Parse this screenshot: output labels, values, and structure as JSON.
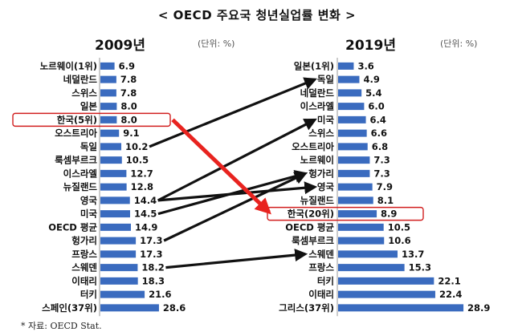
{
  "title": "< OECD 주요국 청년실업률 변화 >",
  "source": "* 자료: OECD Stat.",
  "chart_data": [
    {
      "type": "bar",
      "orientation": "horizontal",
      "title": "2009년",
      "unit": "(단위: %)",
      "categories": [
        "노르웨이(1위)",
        "네덜란드",
        "스위스",
        "일본",
        "한국(5위)",
        "오스트리아",
        "독일",
        "룩셈부르크",
        "이스라엘",
        "뉴질랜드",
        "영국",
        "미국",
        "OECD 평균",
        "헝가리",
        "프랑스",
        "스웨덴",
        "이태리",
        "터키",
        "스페인(37위)"
      ],
      "values": [
        6.9,
        7.8,
        7.8,
        8.0,
        8.0,
        9.1,
        10.2,
        10.5,
        12.7,
        12.8,
        14.4,
        14.5,
        14.9,
        17.3,
        17.3,
        18.2,
        18.3,
        21.6,
        28.6
      ],
      "value_labels": [
        "6.9",
        "7.8",
        "7.8",
        "8.0",
        "8.0",
        "9.1",
        "10.2",
        "10.5",
        "12.7",
        "12.8",
        "14.4",
        "14.5",
        "14.9",
        "17.3",
        "17.3",
        "18.2",
        "18.3",
        "21.6",
        "28.6"
      ],
      "highlight": "한국(5위)",
      "bar_color": "#3a6bbf"
    },
    {
      "type": "bar",
      "orientation": "horizontal",
      "title": "2019년",
      "unit": "(단위: %)",
      "categories": [
        "일본(1위)",
        "독일",
        "네덜란드",
        "이스라엘",
        "미국",
        "스위스",
        "오스트리아",
        "노르웨이",
        "헝가리",
        "영국",
        "뉴질랜드",
        "한국(20위)",
        "OECD 평균",
        "룩셈부르크",
        "스웨덴",
        "프랑스",
        "터키",
        "이태리",
        "그리스(37위)"
      ],
      "values": [
        3.6,
        4.9,
        5.4,
        6.0,
        6.4,
        6.6,
        6.8,
        7.3,
        7.3,
        7.9,
        8.1,
        8.9,
        10.5,
        10.6,
        13.7,
        15.3,
        22.1,
        22.4,
        28.9
      ],
      "value_labels": [
        "3.6",
        "4.9",
        "5.4",
        "6.0",
        "6.4",
        "6.6",
        "6.8",
        "7.3",
        "7.3",
        "7.9",
        "8.1",
        "8.9",
        "10.5",
        "10.6",
        "13.7",
        "15.3",
        "22.1",
        "22.4",
        "28.9"
      ],
      "highlight": "한국(20위)",
      "bar_color": "#3a6bbf"
    }
  ],
  "rank_change_arrows": [
    {
      "from": "독일",
      "to": "독일",
      "color": "#111111"
    },
    {
      "from": "영국",
      "to": "미국",
      "color": "#111111"
    },
    {
      "from": "미국",
      "to": "헝가리",
      "color": "#111111"
    },
    {
      "from": "영국",
      "to": "영국",
      "color": "#111111"
    },
    {
      "from": "헝가리",
      "to": "헝가리",
      "color": "#111111"
    },
    {
      "from": "스웨덴",
      "to": "스웨덴",
      "color": "#111111"
    },
    {
      "from": "한국(5위)",
      "to": "한국(20위)",
      "color": "#e8231f"
    }
  ]
}
